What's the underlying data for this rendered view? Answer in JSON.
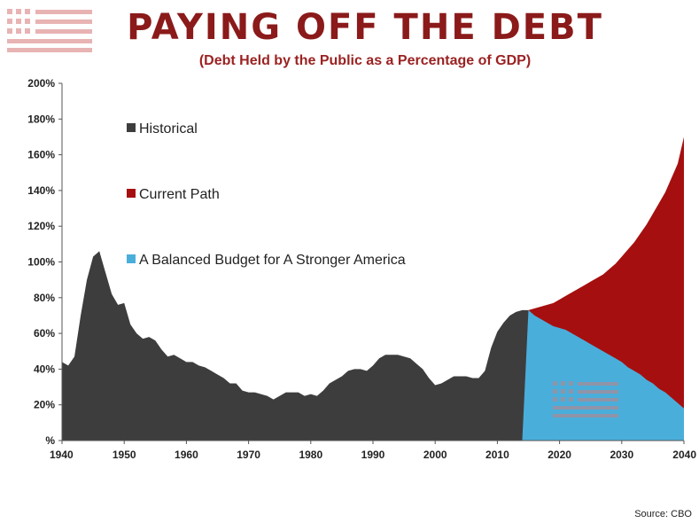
{
  "chart_data": {
    "type": "area",
    "title": "PAYING OFF THE DEBT",
    "subtitle": "(Debt Held by the Public as a Percentage of GDP)",
    "source": "Source: CBO",
    "xlim": [
      1940,
      2040
    ],
    "ylim": [
      0,
      200
    ],
    "x_ticks": [
      "1940",
      "1950",
      "1960",
      "1970",
      "1980",
      "1990",
      "2000",
      "2010",
      "2020",
      "2030",
      "2040"
    ],
    "y_ticks": [
      "%",
      "20%",
      "40%",
      "60%",
      "80%",
      "100%",
      "120%",
      "140%",
      "160%",
      "180%",
      "200%"
    ],
    "grid": false,
    "legend_placement": "upper-left",
    "colors": {
      "historical": "#3d3d3d",
      "current_path": "#a60f0f",
      "balanced": "#4aaedb",
      "title": "#8b1a1a"
    },
    "series": [
      {
        "name": "Historical",
        "x": [
          1940,
          1941,
          1942,
          1943,
          1944,
          1945,
          1946,
          1947,
          1948,
          1949,
          1950,
          1951,
          1952,
          1953,
          1954,
          1955,
          1956,
          1957,
          1958,
          1959,
          1960,
          1961,
          1962,
          1963,
          1964,
          1965,
          1966,
          1967,
          1968,
          1969,
          1970,
          1971,
          1972,
          1973,
          1974,
          1975,
          1976,
          1977,
          1978,
          1979,
          1980,
          1981,
          1982,
          1983,
          1984,
          1985,
          1986,
          1987,
          1988,
          1989,
          1990,
          1991,
          1992,
          1993,
          1994,
          1995,
          1996,
          1997,
          1998,
          1999,
          2000,
          2001,
          2002,
          2003,
          2004,
          2005,
          2006,
          2007,
          2008,
          2009,
          2010,
          2011,
          2012,
          2013,
          2014,
          2015
        ],
        "values": [
          44,
          42,
          47,
          70,
          90,
          103,
          106,
          94,
          82,
          76,
          77,
          65,
          60,
          57,
          58,
          56,
          51,
          47,
          48,
          46,
          44,
          44,
          42,
          41,
          39,
          37,
          35,
          32,
          32,
          28,
          27,
          27,
          26,
          25,
          23,
          25,
          27,
          27,
          27,
          25,
          26,
          25,
          28,
          32,
          34,
          36,
          39,
          40,
          40,
          39,
          42,
          46,
          48,
          48,
          48,
          47,
          46,
          43,
          40,
          35,
          31,
          32,
          34,
          36,
          36,
          36,
          35,
          35,
          39,
          52,
          61,
          66,
          70,
          72,
          73,
          73
        ]
      },
      {
        "name": "Current Path",
        "x": [
          2015,
          2016,
          2017,
          2018,
          2019,
          2020,
          2021,
          2022,
          2023,
          2024,
          2025,
          2026,
          2027,
          2028,
          2029,
          2030,
          2031,
          2032,
          2033,
          2034,
          2035,
          2036,
          2037,
          2038,
          2039,
          2040
        ],
        "values": [
          73,
          74,
          75,
          76,
          77,
          79,
          81,
          83,
          85,
          87,
          89,
          91,
          93,
          96,
          99,
          103,
          107,
          111,
          116,
          121,
          127,
          133,
          139,
          147,
          155,
          170
        ]
      },
      {
        "name": "A Balanced Budget for A Stronger America",
        "x": [
          2014,
          2015,
          2016,
          2017,
          2018,
          2019,
          2020,
          2021,
          2022,
          2023,
          2024,
          2025,
          2026,
          2027,
          2028,
          2029,
          2030,
          2031,
          2032,
          2033,
          2034,
          2035,
          2036,
          2037,
          2038,
          2039,
          2040
        ],
        "values": [
          0,
          73,
          70,
          68,
          66,
          64,
          63,
          62,
          60,
          58,
          56,
          54,
          52,
          50,
          48,
          46,
          44,
          41,
          39,
          37,
          34,
          32,
          29,
          27,
          24,
          21,
          18
        ]
      }
    ]
  }
}
